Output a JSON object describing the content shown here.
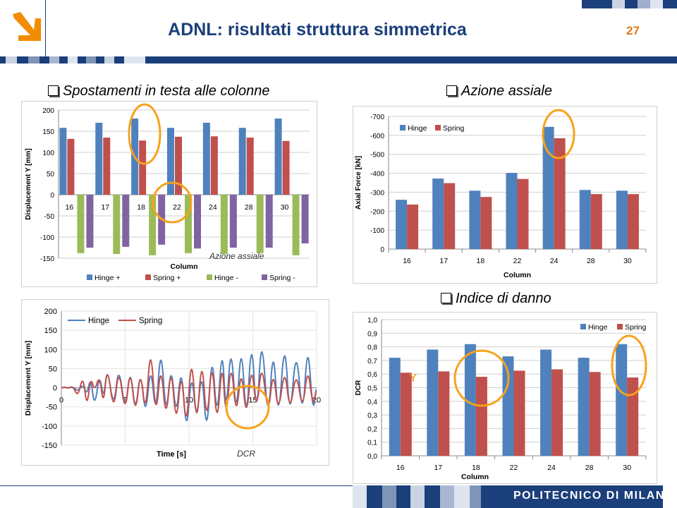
{
  "header": {
    "title": "ADNL: risultati struttura simmetrica",
    "page_number": "27",
    "logo_icon": "arrow-down-right-icon",
    "accent_color": "#f28c00",
    "brand_color": "#1b3f7a"
  },
  "sections": {
    "displacement": "Spostamenti in testa alle colonne",
    "axial": "Azione assiale",
    "damage": "Indice di danno"
  },
  "annotations": {
    "azione_assiale": "Azione assiale",
    "dcr": "DCR",
    "y": "Y"
  },
  "footer": {
    "institution": "POLITECNICO DI MILANO"
  },
  "chart_data": [
    {
      "id": "displacement-bars",
      "type": "bar",
      "title": "",
      "xlabel": "Column",
      "ylabel": "Displacement Y [mm]",
      "categories": [
        "16",
        "17",
        "18",
        "22",
        "24",
        "28",
        "30"
      ],
      "ylim": [
        -150,
        200
      ],
      "yticks": [
        200,
        150,
        100,
        50,
        0,
        -50,
        -100,
        -150
      ],
      "legend_position": "bottom",
      "series": [
        {
          "name": "Hinge +",
          "color": "#4f81bd",
          "values": [
            158,
            170,
            180,
            158,
            170,
            158,
            180
          ]
        },
        {
          "name": "Spring +",
          "color": "#c0504d",
          "values": [
            132,
            135,
            128,
            137,
            138,
            135,
            127
          ]
        },
        {
          "name": "Hinge -",
          "color": "#9bbb59",
          "values": [
            -138,
            -140,
            -143,
            -138,
            -140,
            -138,
            -143
          ]
        },
        {
          "name": "Spring -",
          "color": "#8064a2",
          "values": [
            -125,
            -123,
            -118,
            -127,
            -125,
            -125,
            -115
          ]
        }
      ]
    },
    {
      "id": "axial-bars",
      "type": "bar",
      "title": "",
      "xlabel": "Column",
      "ylabel": "Axial Force [kN]",
      "categories": [
        "16",
        "17",
        "18",
        "22",
        "24",
        "28",
        "30"
      ],
      "ylim": [
        0,
        -700
      ],
      "yticks": [
        -700,
        -600,
        -500,
        -400,
        -300,
        -200,
        -100,
        0
      ],
      "legend_position": "top-left",
      "series": [
        {
          "name": "Hinge",
          "color": "#4f81bd",
          "values": [
            -260,
            -372,
            -308,
            -402,
            -645,
            -312,
            -308
          ]
        },
        {
          "name": "Spring",
          "color": "#c0504d",
          "values": [
            -235,
            -348,
            -275,
            -370,
            -585,
            -290,
            -290
          ]
        }
      ]
    },
    {
      "id": "time-history",
      "type": "line",
      "title": "",
      "xlabel": "Time [s]",
      "ylabel": "Displacement Y [mm]",
      "xlim": [
        0,
        20
      ],
      "ylim": [
        -150,
        200
      ],
      "xticks": [
        0,
        5,
        10,
        15,
        20
      ],
      "yticks": [
        200,
        150,
        100,
        50,
        0,
        -50,
        -100,
        -150
      ],
      "legend_position": "top-left",
      "series": [
        {
          "name": "Hinge",
          "color": "#4f81bd",
          "x": [
            0,
            0.3,
            0.55,
            0.9,
            1.3,
            1.7,
            2.0,
            2.3,
            2.6,
            3.0,
            3.3,
            3.6,
            4.1,
            4.5,
            5.0,
            5.4,
            5.8,
            6.2,
            6.6,
            7.0,
            7.4,
            7.8,
            8.2,
            8.6,
            9.0,
            9.4,
            9.8,
            10.2,
            10.6,
            11.0,
            11.4,
            11.8,
            12.2,
            12.6,
            12.9,
            13.3,
            13.7,
            14.1,
            14.5,
            14.9,
            15.3,
            15.7,
            16.2,
            16.6,
            17.0,
            17.5,
            17.9,
            18.4,
            18.9,
            19.3,
            19.7,
            19.95
          ],
          "y": [
            0,
            2,
            -1,
            3,
            -10,
            10,
            -20,
            30,
            -55,
            40,
            -35,
            60,
            -60,
            65,
            -70,
            60,
            -75,
            55,
            -85,
            70,
            -85,
            125,
            -90,
            72,
            -88,
            70,
            -135,
            55,
            -100,
            60,
            -140,
            110,
            -100,
            125,
            -85,
            130,
            -95,
            135,
            -110,
            150,
            -100,
            160,
            -110,
            125,
            -105,
            145,
            -100,
            120,
            -95,
            132,
            -70,
            -5
          ]
        },
        {
          "name": "Spring",
          "color": "#c0504d",
          "x": [
            0,
            0.3,
            0.55,
            0.9,
            1.3,
            1.7,
            2.0,
            2.3,
            2.6,
            3.0,
            3.3,
            3.6,
            4.1,
            4.5,
            5.0,
            5.4,
            5.8,
            6.2,
            6.6,
            7.0,
            7.4,
            7.8,
            8.2,
            8.6,
            9.0,
            9.4,
            9.8,
            10.2,
            10.6,
            11.0,
            11.4,
            11.8,
            12.2,
            12.6,
            12.9,
            13.3,
            13.7,
            14.1,
            14.5,
            14.9,
            15.3,
            15.7,
            16.2,
            16.6,
            17.0,
            17.5,
            17.9,
            18.4,
            18.9,
            19.3,
            19.7,
            19.95
          ],
          "y": [
            0,
            2,
            -2,
            5,
            -25,
            35,
            -55,
            30,
            -10,
            35,
            -50,
            65,
            -70,
            60,
            -75,
            60,
            -80,
            55,
            -80,
            125,
            -90,
            72,
            -95,
            68,
            -110,
            60,
            -125,
            105,
            -120,
            95,
            -110,
            90,
            -115,
            85,
            -95,
            80,
            -85,
            60,
            -90,
            70,
            -70,
            75,
            -80,
            55,
            -75,
            60,
            -70,
            50,
            -65,
            60,
            -50,
            -10
          ]
        }
      ]
    },
    {
      "id": "damage-bars",
      "type": "bar",
      "title": "",
      "xlabel": "Column",
      "ylabel": "DCR",
      "categories": [
        "16",
        "17",
        "18",
        "22",
        "24",
        "28",
        "30"
      ],
      "ylim": [
        0,
        1.0
      ],
      "yticks": [
        "1,0",
        "0,9",
        "0,8",
        "0,7",
        "0,6",
        "0,5",
        "0,4",
        "0,3",
        "0,2",
        "0,1",
        "0,0"
      ],
      "legend_position": "top-right",
      "series": [
        {
          "name": "Hinge",
          "color": "#4f81bd",
          "values": [
            0.72,
            0.78,
            0.82,
            0.73,
            0.78,
            0.72,
            0.82
          ]
        },
        {
          "name": "Spring",
          "color": "#c0504d",
          "values": [
            0.61,
            0.62,
            0.58,
            0.625,
            0.635,
            0.615,
            0.575
          ]
        }
      ]
    }
  ]
}
